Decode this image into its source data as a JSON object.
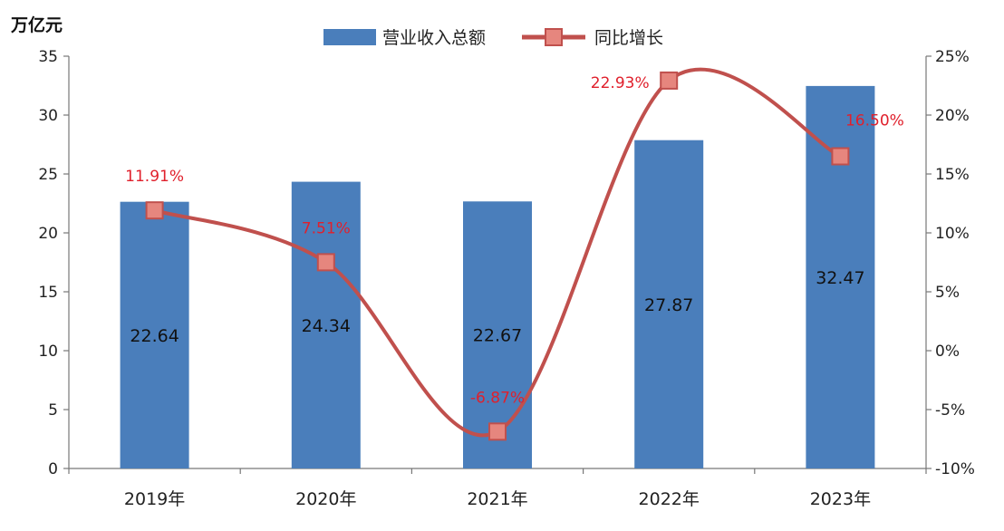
{
  "chart_data": {
    "type": "bar",
    "unit_label": "万亿元",
    "categories": [
      "2019年",
      "2020年",
      "2021年",
      "2022年",
      "2023年"
    ],
    "series": [
      {
        "name": "营业收入总额",
        "type": "bar",
        "axis": "left",
        "values": [
          22.64,
          24.34,
          22.67,
          27.87,
          32.47
        ],
        "labels": [
          "22.64",
          "24.34",
          "22.67",
          "27.87",
          "32.47"
        ],
        "color": "#4a7ebb"
      },
      {
        "name": "同比增长",
        "type": "line",
        "axis": "right",
        "values": [
          11.91,
          7.51,
          -6.87,
          22.93,
          16.5
        ],
        "labels": [
          "11.91%",
          "7.51%",
          "-6.87%",
          "22.93%",
          "16.50%"
        ],
        "color": "#c0504d",
        "label_color": "#e0202c"
      }
    ],
    "y_left": {
      "min": 0,
      "max": 35,
      "step": 5,
      "ticks": [
        "0",
        "5",
        "10",
        "15",
        "20",
        "25",
        "30",
        "35"
      ]
    },
    "y_right": {
      "min": -10,
      "max": 25,
      "step": 5,
      "ticks": [
        "-10%",
        "-5%",
        "0%",
        "5%",
        "10%",
        "15%",
        "20%",
        "25%"
      ]
    },
    "legend_position": "top",
    "grid": false
  }
}
